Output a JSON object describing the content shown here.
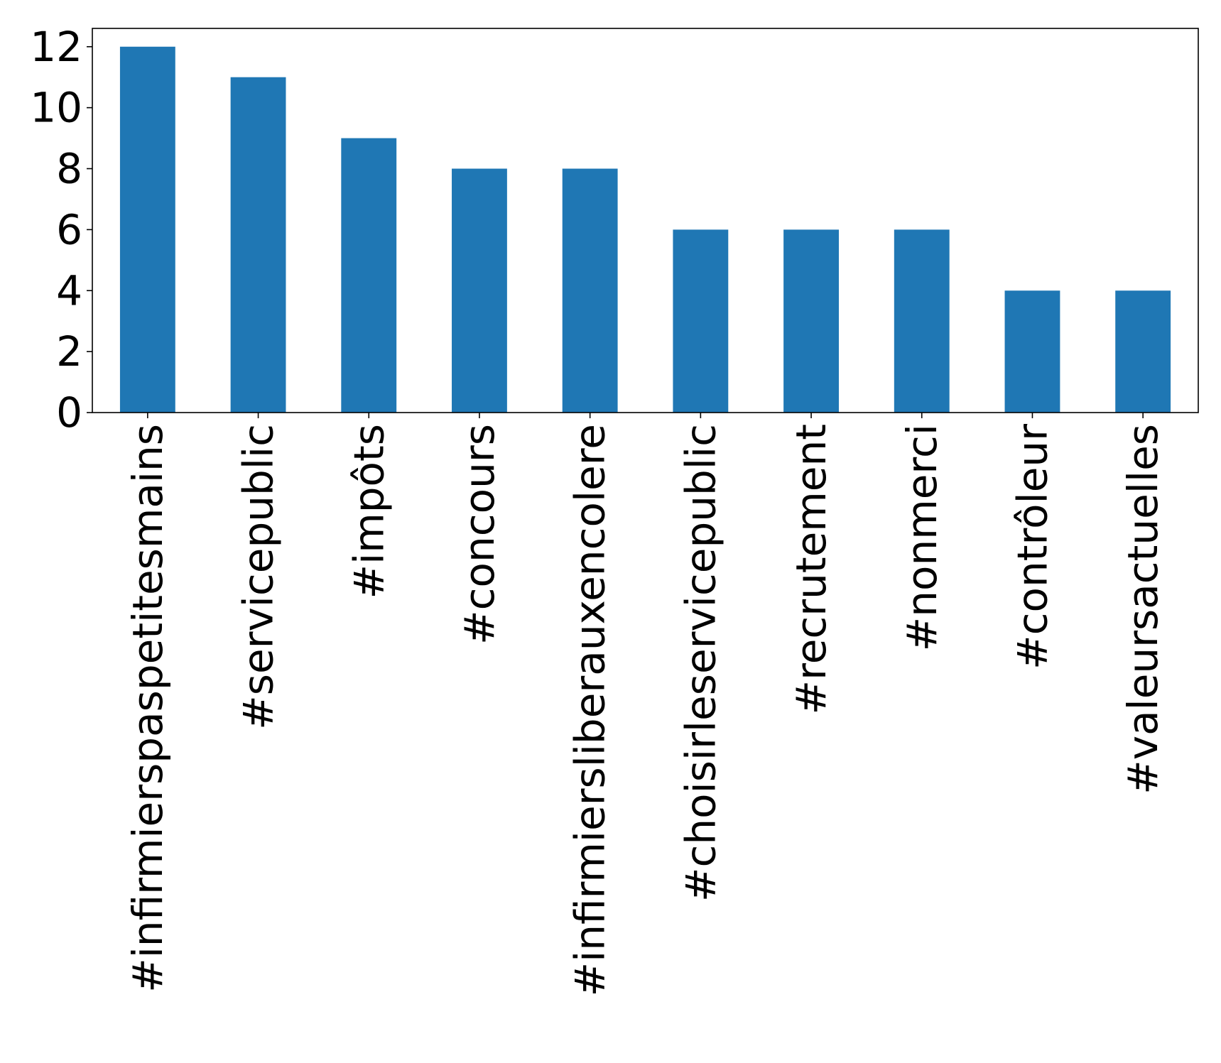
{
  "chart_data": {
    "type": "bar",
    "title": "",
    "xlabel": "",
    "ylabel": "",
    "categories": [
      "#infirmierspaspetitesmains",
      "#servicepublic",
      "#impôts",
      "#concours",
      "#infirmiersliberauxencolere",
      "#choisirleservicepublic",
      "#recrutement",
      "#nonmerci",
      "#contrôleur",
      "#valeursactuelles"
    ],
    "values": [
      12,
      11,
      9,
      8,
      8,
      6,
      6,
      6,
      4,
      4
    ],
    "ylim": [
      0,
      12.6
    ],
    "yticks": [
      0,
      2,
      4,
      6,
      8,
      10,
      12
    ],
    "bar_color": "#1f77b4",
    "grid": false,
    "legend": "none"
  }
}
